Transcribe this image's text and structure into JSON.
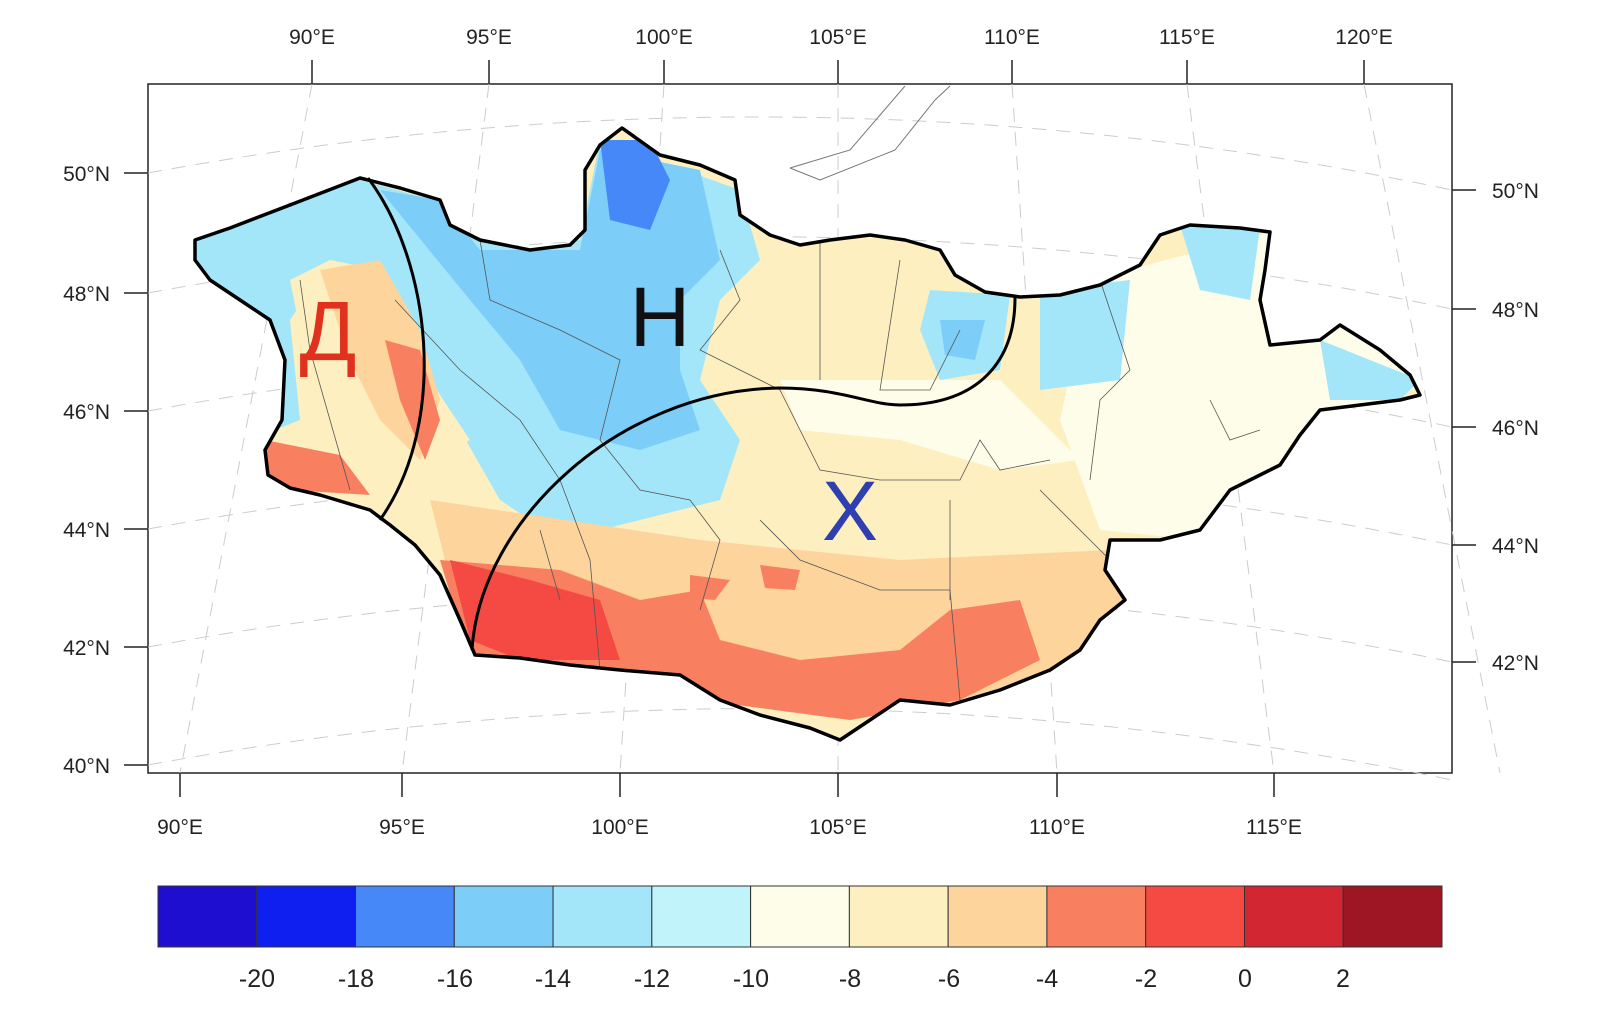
{
  "map": {
    "top_lon_labels": [
      "90°E",
      "95°E",
      "100°E",
      "105°E",
      "110°E",
      "115°E",
      "120°E"
    ],
    "bottom_lon_labels": [
      "90°E",
      "95°E",
      "100°E",
      "105°E",
      "110°E",
      "115°E"
    ],
    "left_lat_labels": [
      "50°N",
      "48°N",
      "46°N",
      "44°N",
      "42°N",
      "40°N"
    ],
    "right_lat_labels": [
      "50°N",
      "48°N",
      "46°N",
      "44°N",
      "42°N"
    ],
    "regions": [
      {
        "label": "Д",
        "color": "#e0301e"
      },
      {
        "label": "Н",
        "color": "#111111"
      },
      {
        "label": "Х",
        "color": "#2f3fb0"
      }
    ]
  },
  "colorbar": {
    "colors": [
      "#1e0fd0",
      "#0f1ff0",
      "#4688f8",
      "#7ccdf8",
      "#a3e6fa",
      "#c0f4fa",
      "#fefdea",
      "#fdefc0",
      "#fdd49c",
      "#f88060",
      "#f54a44",
      "#d22633",
      "#9e1623"
    ],
    "labels": [
      "-20",
      "-18",
      "-16",
      "-14",
      "-12",
      "-10",
      "-8",
      "-6",
      "-4",
      "-2",
      "0",
      "2"
    ]
  }
}
